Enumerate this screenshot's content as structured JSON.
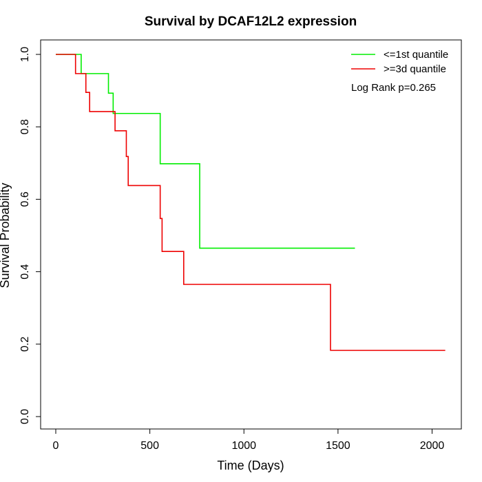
{
  "chart_data": {
    "type": "line",
    "step": true,
    "title": "Survival by DCAF12L2 expression",
    "xlabel": "Time (Days)",
    "ylabel": "Survival Probability",
    "xlim": [
      0,
      2070
    ],
    "ylim": [
      0,
      1
    ],
    "xticks": [
      0,
      500,
      1000,
      1500,
      2000
    ],
    "yticks": [
      0.0,
      0.2,
      0.4,
      0.6,
      0.8,
      1.0
    ],
    "xtick_labels": [
      "0",
      "500",
      "1000",
      "1500",
      "2000"
    ],
    "ytick_labels": [
      "0.0",
      "0.2",
      "0.4",
      "0.6",
      "0.8",
      "1.0"
    ],
    "grid": false,
    "legend_position": "top-right",
    "annotation": "Log Rank p=0.265",
    "series": [
      {
        "name": "<=1st quantile",
        "color": "#00ee00",
        "x": [
          0,
          135,
          280,
          305,
          555,
          765,
          1590
        ],
        "y": [
          1.0,
          0.947,
          0.893,
          0.837,
          0.698,
          0.465,
          0.465
        ]
      },
      {
        "name": ">=3d quantile",
        "color": "#ee0000",
        "x": [
          0,
          105,
          160,
          180,
          315,
          375,
          385,
          555,
          565,
          680,
          1460,
          2070
        ],
        "y": [
          1.0,
          0.947,
          0.895,
          0.842,
          0.789,
          0.718,
          0.638,
          0.547,
          0.456,
          0.365,
          0.183,
          0.183
        ]
      }
    ]
  }
}
